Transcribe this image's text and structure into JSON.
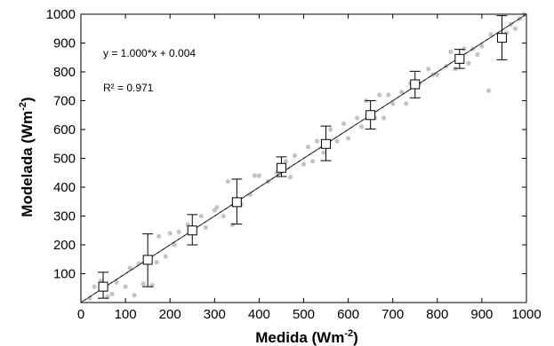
{
  "chart_data": {
    "type": "scatter",
    "xlabel": {
      "text": "Medida (Wm",
      "sup": "-2",
      "close": ")"
    },
    "ylabel": {
      "text": "Modelada (Wm",
      "sup": "-2",
      "close": ")"
    },
    "xlim": [
      0,
      1000
    ],
    "ylim": [
      0,
      1000
    ],
    "xticks": [
      0,
      100,
      200,
      300,
      400,
      500,
      600,
      700,
      800,
      900,
      1000
    ],
    "yticks": [
      100,
      200,
      300,
      400,
      500,
      600,
      700,
      800,
      900,
      1000
    ],
    "grid": false,
    "annotations": {
      "equation": "y = 1.000*x + 0.004",
      "r2": "R² = 0.971"
    },
    "fit_line": {
      "slope": 1.0,
      "intercept": 0.004
    },
    "binned_means": [
      {
        "x": 50,
        "y": 55,
        "err_low": 15,
        "err_high": 105
      },
      {
        "x": 150,
        "y": 148,
        "err_low": 55,
        "err_high": 238
      },
      {
        "x": 250,
        "y": 250,
        "err_low": 200,
        "err_high": 305
      },
      {
        "x": 350,
        "y": 348,
        "err_low": 272,
        "err_high": 428
      },
      {
        "x": 450,
        "y": 467,
        "err_low": 437,
        "err_high": 505
      },
      {
        "x": 550,
        "y": 550,
        "err_low": 492,
        "err_high": 612
      },
      {
        "x": 650,
        "y": 650,
        "err_low": 602,
        "err_high": 700
      },
      {
        "x": 750,
        "y": 757,
        "err_low": 710,
        "err_high": 802
      },
      {
        "x": 850,
        "y": 845,
        "err_low": 812,
        "err_high": 878
      },
      {
        "x": 945,
        "y": 918,
        "err_low": 842,
        "err_high": 995
      }
    ],
    "scatter_points": [
      [
        20,
        15
      ],
      [
        30,
        55
      ],
      [
        45,
        75
      ],
      [
        60,
        20
      ],
      [
        70,
        30
      ],
      [
        80,
        70
      ],
      [
        100,
        55
      ],
      [
        110,
        120
      ],
      [
        120,
        25
      ],
      [
        130,
        135
      ],
      [
        140,
        65
      ],
      [
        160,
        60
      ],
      [
        170,
        140
      ],
      [
        175,
        230
      ],
      [
        190,
        160
      ],
      [
        200,
        240
      ],
      [
        210,
        200
      ],
      [
        220,
        245
      ],
      [
        240,
        270
      ],
      [
        250,
        260
      ],
      [
        270,
        300
      ],
      [
        280,
        260
      ],
      [
        300,
        320
      ],
      [
        305,
        330
      ],
      [
        320,
        300
      ],
      [
        330,
        420
      ],
      [
        340,
        270
      ],
      [
        350,
        350
      ],
      [
        360,
        340
      ],
      [
        380,
        375
      ],
      [
        390,
        440
      ],
      [
        400,
        440
      ],
      [
        420,
        420
      ],
      [
        440,
        450
      ],
      [
        460,
        490
      ],
      [
        470,
        435
      ],
      [
        480,
        510
      ],
      [
        500,
        480
      ],
      [
        510,
        540
      ],
      [
        520,
        490
      ],
      [
        530,
        560
      ],
      [
        545,
        520
      ],
      [
        560,
        600
      ],
      [
        575,
        560
      ],
      [
        590,
        620
      ],
      [
        600,
        570
      ],
      [
        620,
        640
      ],
      [
        630,
        610
      ],
      [
        640,
        700
      ],
      [
        650,
        650
      ],
      [
        660,
        640
      ],
      [
        670,
        720
      ],
      [
        680,
        640
      ],
      [
        690,
        720
      ],
      [
        700,
        690
      ],
      [
        720,
        730
      ],
      [
        730,
        690
      ],
      [
        740,
        760
      ],
      [
        760,
        760
      ],
      [
        780,
        810
      ],
      [
        790,
        790
      ],
      [
        800,
        790
      ],
      [
        820,
        820
      ],
      [
        830,
        870
      ],
      [
        840,
        810
      ],
      [
        860,
        880
      ],
      [
        870,
        830
      ],
      [
        880,
        880
      ],
      [
        890,
        860
      ],
      [
        900,
        890
      ],
      [
        915,
        735
      ],
      [
        920,
        930
      ],
      [
        940,
        910
      ],
      [
        955,
        935
      ],
      [
        965,
        965
      ],
      [
        975,
        950
      ],
      [
        985,
        985
      ],
      [
        995,
        1000
      ]
    ]
  }
}
